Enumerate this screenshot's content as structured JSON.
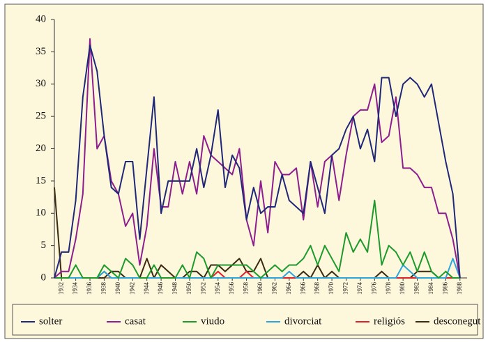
{
  "chart_data": {
    "type": "line",
    "x": [
      1931,
      1932,
      1933,
      1934,
      1935,
      1936,
      1937,
      1938,
      1939,
      1940,
      1941,
      1942,
      1943,
      1944,
      1945,
      1946,
      1947,
      1948,
      1949,
      1950,
      1951,
      1952,
      1953,
      1954,
      1955,
      1956,
      1957,
      1958,
      1959,
      1960,
      1961,
      1962,
      1963,
      1964,
      1965,
      1966,
      1967,
      1968,
      1969,
      1970,
      1971,
      1972,
      1973,
      1974,
      1975,
      1976,
      1977,
      1978,
      1979,
      1980,
      1981,
      1982,
      1983,
      1984,
      1985,
      1986,
      1987,
      1988
    ],
    "xlim": [
      1931,
      1989
    ],
    "xticks": [
      1932,
      1934,
      1936,
      1938,
      1940,
      1942,
      1944,
      1946,
      1948,
      1950,
      1952,
      1954,
      1956,
      1958,
      1960,
      1962,
      1964,
      1966,
      1968,
      1970,
      1972,
      1974,
      1976,
      1978,
      1980,
      1982,
      1984,
      1986,
      1988
    ],
    "ylim": [
      0,
      40
    ],
    "yticks": [
      0,
      5,
      10,
      15,
      20,
      25,
      30,
      35,
      40
    ],
    "legend": "bottom",
    "series": [
      {
        "name": "solter",
        "color": "#1f2878",
        "values": [
          0,
          4,
          4,
          12,
          28,
          36,
          32,
          22,
          14,
          13,
          18,
          18,
          6,
          17,
          28,
          10,
          15,
          15,
          15,
          15,
          20,
          14,
          19,
          26,
          14,
          19,
          17,
          9,
          14,
          10,
          11,
          11,
          16,
          12,
          11,
          10,
          18,
          14,
          10,
          19,
          20,
          23,
          25,
          20,
          23,
          18,
          31,
          31,
          25,
          30,
          31,
          30,
          28,
          30,
          24,
          18,
          13,
          0
        ]
      },
      {
        "name": "casat",
        "color": "#8e1e8e",
        "values": [
          0,
          1,
          1,
          6,
          13,
          37,
          20,
          22,
          15,
          13,
          8,
          10,
          2,
          8,
          20,
          11,
          11,
          18,
          13,
          18,
          13,
          22,
          19,
          18,
          17,
          16,
          20,
          9,
          5,
          15,
          7,
          18,
          16,
          16,
          17,
          9,
          18,
          11,
          18,
          19,
          12,
          19,
          25,
          26,
          26,
          30,
          21,
          22,
          28,
          17,
          17,
          16,
          14,
          14,
          10,
          10,
          6,
          0
        ]
      },
      {
        "name": "viudo",
        "color": "#1d9a2c",
        "values": [
          0,
          0,
          0,
          2,
          0,
          0,
          0,
          2,
          1,
          0,
          3,
          2,
          0,
          0,
          2,
          0,
          0,
          0,
          2,
          0,
          4,
          3,
          0,
          2,
          2,
          2,
          2,
          2,
          1,
          0,
          1,
          2,
          1,
          2,
          2,
          3,
          5,
          2,
          5,
          3,
          1,
          7,
          4,
          6,
          4,
          12,
          2,
          5,
          4,
          2,
          4,
          1,
          4,
          1,
          0,
          1,
          0,
          0
        ]
      },
      {
        "name": "divorciat",
        "color": "#2aa6dc",
        "values": [
          0,
          0,
          0,
          0,
          0,
          0,
          0,
          1,
          0,
          0,
          0,
          0,
          0,
          0,
          0,
          0,
          0,
          0,
          0,
          0,
          0,
          0,
          0,
          0,
          0,
          0,
          0,
          0,
          0,
          0,
          0,
          0,
          0,
          1,
          0,
          0,
          0,
          0,
          0,
          0,
          0,
          0,
          0,
          0,
          0,
          0,
          0,
          0,
          0,
          2,
          1,
          0,
          0,
          0,
          0,
          0,
          3,
          0
        ]
      },
      {
        "name": "religiós",
        "color": "#e3202a",
        "values": [
          0,
          0,
          0,
          0,
          0,
          0,
          0,
          1,
          0,
          0,
          0,
          0,
          0,
          0,
          0,
          0,
          0,
          0,
          0,
          0,
          0,
          0,
          0,
          1,
          0,
          0,
          0,
          1,
          0,
          0,
          0,
          0,
          0,
          0,
          0,
          0,
          0,
          0,
          0,
          0,
          0,
          0,
          0,
          0,
          0,
          0,
          0,
          0,
          0,
          0,
          0,
          0,
          0,
          0,
          0,
          0,
          0,
          0
        ]
      },
      {
        "name": "desconegut",
        "color": "#3b2a12",
        "values": [
          14,
          0,
          0,
          0,
          0,
          0,
          0,
          0,
          1,
          1,
          0,
          0,
          0,
          3,
          0,
          2,
          1,
          0,
          0,
          1,
          1,
          0,
          2,
          2,
          1,
          2,
          3,
          1,
          1,
          3,
          0,
          0,
          0,
          0,
          0,
          1,
          0,
          2,
          0,
          1,
          0,
          0,
          0,
          0,
          0,
          0,
          1,
          0,
          0,
          0,
          0,
          1,
          1,
          1,
          0,
          0,
          0,
          0
        ]
      }
    ]
  }
}
